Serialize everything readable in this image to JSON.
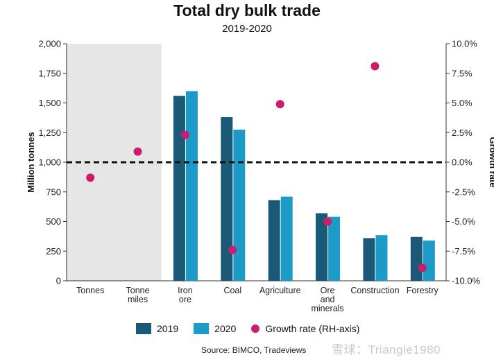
{
  "watermark": "雪球：Triangle1980",
  "source": "Source: BIMCO, Tradeviews",
  "colors": {
    "y2019": "#1a5a78",
    "y2020": "#1d9bc8",
    "growth": "#cc1d6d",
    "shade": "#e6e6e6"
  },
  "chart_data": {
    "type": "bar",
    "title": "Total dry bulk trade",
    "subtitle": "2019-2020",
    "ylabel": "Million tonnes",
    "y2label": "Growth rate",
    "ylim": [
      0,
      2000
    ],
    "y2lim": [
      -10.0,
      10.0
    ],
    "yticks": [
      "0",
      "250",
      "500",
      "750",
      "1,000",
      "1,250",
      "1,500",
      "1,750",
      "2,000"
    ],
    "y2ticks": [
      "-10.0%",
      "-7.5%",
      "-5.0%",
      "-2.5%",
      "0.0%",
      "2.5%",
      "5.0%",
      "7.5%",
      "10.0%"
    ],
    "categories": [
      [
        "Tonnes"
      ],
      [
        "Tonne",
        "miles"
      ],
      [
        "Iron",
        "ore"
      ],
      [
        "Coal"
      ],
      [
        "Agriculture"
      ],
      [
        "Ore",
        "and",
        "minerals"
      ],
      [
        "Construction"
      ],
      [
        "Forestry"
      ]
    ],
    "shaded_categories": 2,
    "series": [
      {
        "name": "2019",
        "values": [
          null,
          null,
          1560,
          1380,
          680,
          570,
          360,
          370
        ]
      },
      {
        "name": "2020",
        "values": [
          null,
          null,
          1600,
          1275,
          710,
          540,
          385,
          340
        ]
      }
    ],
    "growth": {
      "name": "Growth rate (RH-axis)",
      "values": [
        -1.3,
        0.9,
        2.3,
        -7.4,
        4.9,
        -5.0,
        8.1,
        -8.9
      ]
    },
    "reference_line": 0.0
  }
}
